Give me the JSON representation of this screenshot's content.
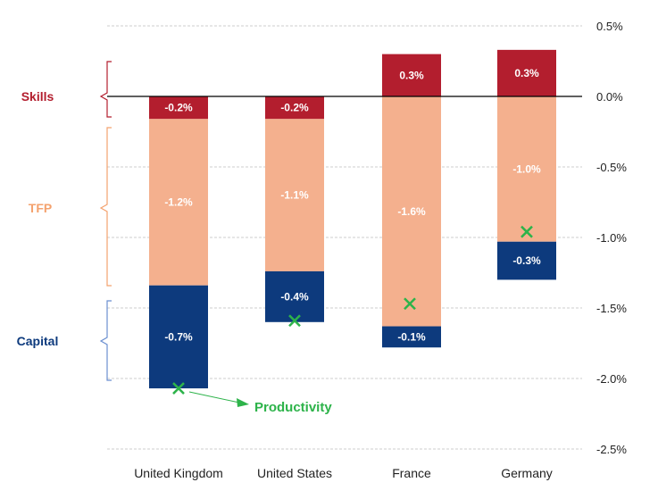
{
  "chart_data": {
    "type": "bar",
    "stacked": true,
    "title": "",
    "categories": [
      "United Kingdom",
      "United States",
      "France",
      "Germany"
    ],
    "series": [
      {
        "name": "Skills",
        "color": "#B31E2E",
        "values": [
          -0.16,
          -0.16,
          0.3,
          0.33
        ],
        "labels": [
          "-0.2%",
          "-0.2%",
          "0.3%",
          "0.3%"
        ]
      },
      {
        "name": "TFP",
        "color": "#F4B08E",
        "values": [
          -1.18,
          -1.08,
          -1.63,
          -1.03
        ],
        "labels": [
          "-1.2%",
          "-1.1%",
          "-1.6%",
          "-1.0%"
        ]
      },
      {
        "name": "Capital",
        "color": "#0D3A7D",
        "values": [
          -0.73,
          -0.36,
          -0.15,
          -0.27
        ],
        "labels": [
          "-0.7%",
          "-0.4%",
          "-0.1%",
          "-0.3%"
        ]
      }
    ],
    "productivity": {
      "name": "Productivity",
      "color": "#2DB34A",
      "values": [
        -2.07,
        -1.59,
        -1.47,
        -0.96
      ]
    },
    "ylim": [
      -2.5,
      0.5
    ],
    "yticks": [
      0.5,
      0.0,
      -0.5,
      -1.0,
      -1.5,
      -2.0,
      -2.5
    ],
    "ytick_labels": [
      "0.5%",
      "0.0%",
      "-0.5%",
      "-1.0%",
      "-1.5%",
      "-2.0%",
      "-2.5%"
    ],
    "axis_position": "right",
    "grid": true,
    "legend": {
      "placement": "left-brackets",
      "labels": [
        "Skills",
        "TFP",
        "Capital"
      ]
    },
    "annotation": "Productivity"
  }
}
